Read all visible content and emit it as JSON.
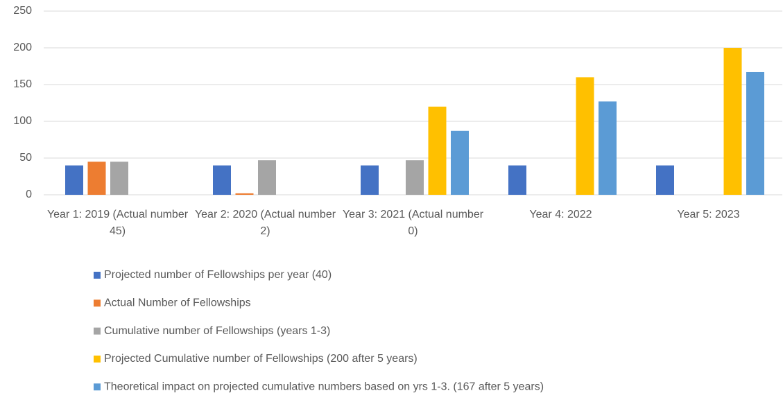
{
  "chart_data": {
    "type": "bar",
    "categories": [
      "Year 1: 2019 (Actual number 45)",
      "Year 2: 2020 (Actual number 2)",
      "Year 3: 2021 (Actual number 0)",
      "Year 4: 2022",
      "Year 5: 2023"
    ],
    "series": [
      {
        "name": "Projected number of Fellowships per year (40)",
        "color": "#4472c4",
        "values": [
          40,
          40,
          40,
          40,
          40
        ]
      },
      {
        "name": "Actual Number of Fellowships",
        "color": "#ed7d31",
        "values": [
          45,
          2,
          0,
          null,
          null
        ]
      },
      {
        "name": "Cumulative number of Fellowships (years 1-3)",
        "color": "#a5a5a5",
        "values": [
          45,
          47,
          47,
          null,
          null
        ]
      },
      {
        "name": "Projected Cumulative number of Fellowships (200 after 5 years)",
        "color": "#ffc000",
        "values": [
          null,
          null,
          120,
          160,
          200
        ]
      },
      {
        "name": "Theoretical impact on projected cumulative numbers based on yrs 1-3. (167 after 5 years)",
        "color": "#5b9bd5",
        "values": [
          null,
          null,
          87,
          127,
          167
        ]
      }
    ],
    "ylim": [
      0,
      250
    ],
    "yticks": [
      0,
      50,
      100,
      150,
      200,
      250
    ],
    "grid": true,
    "legend": "bottom"
  }
}
